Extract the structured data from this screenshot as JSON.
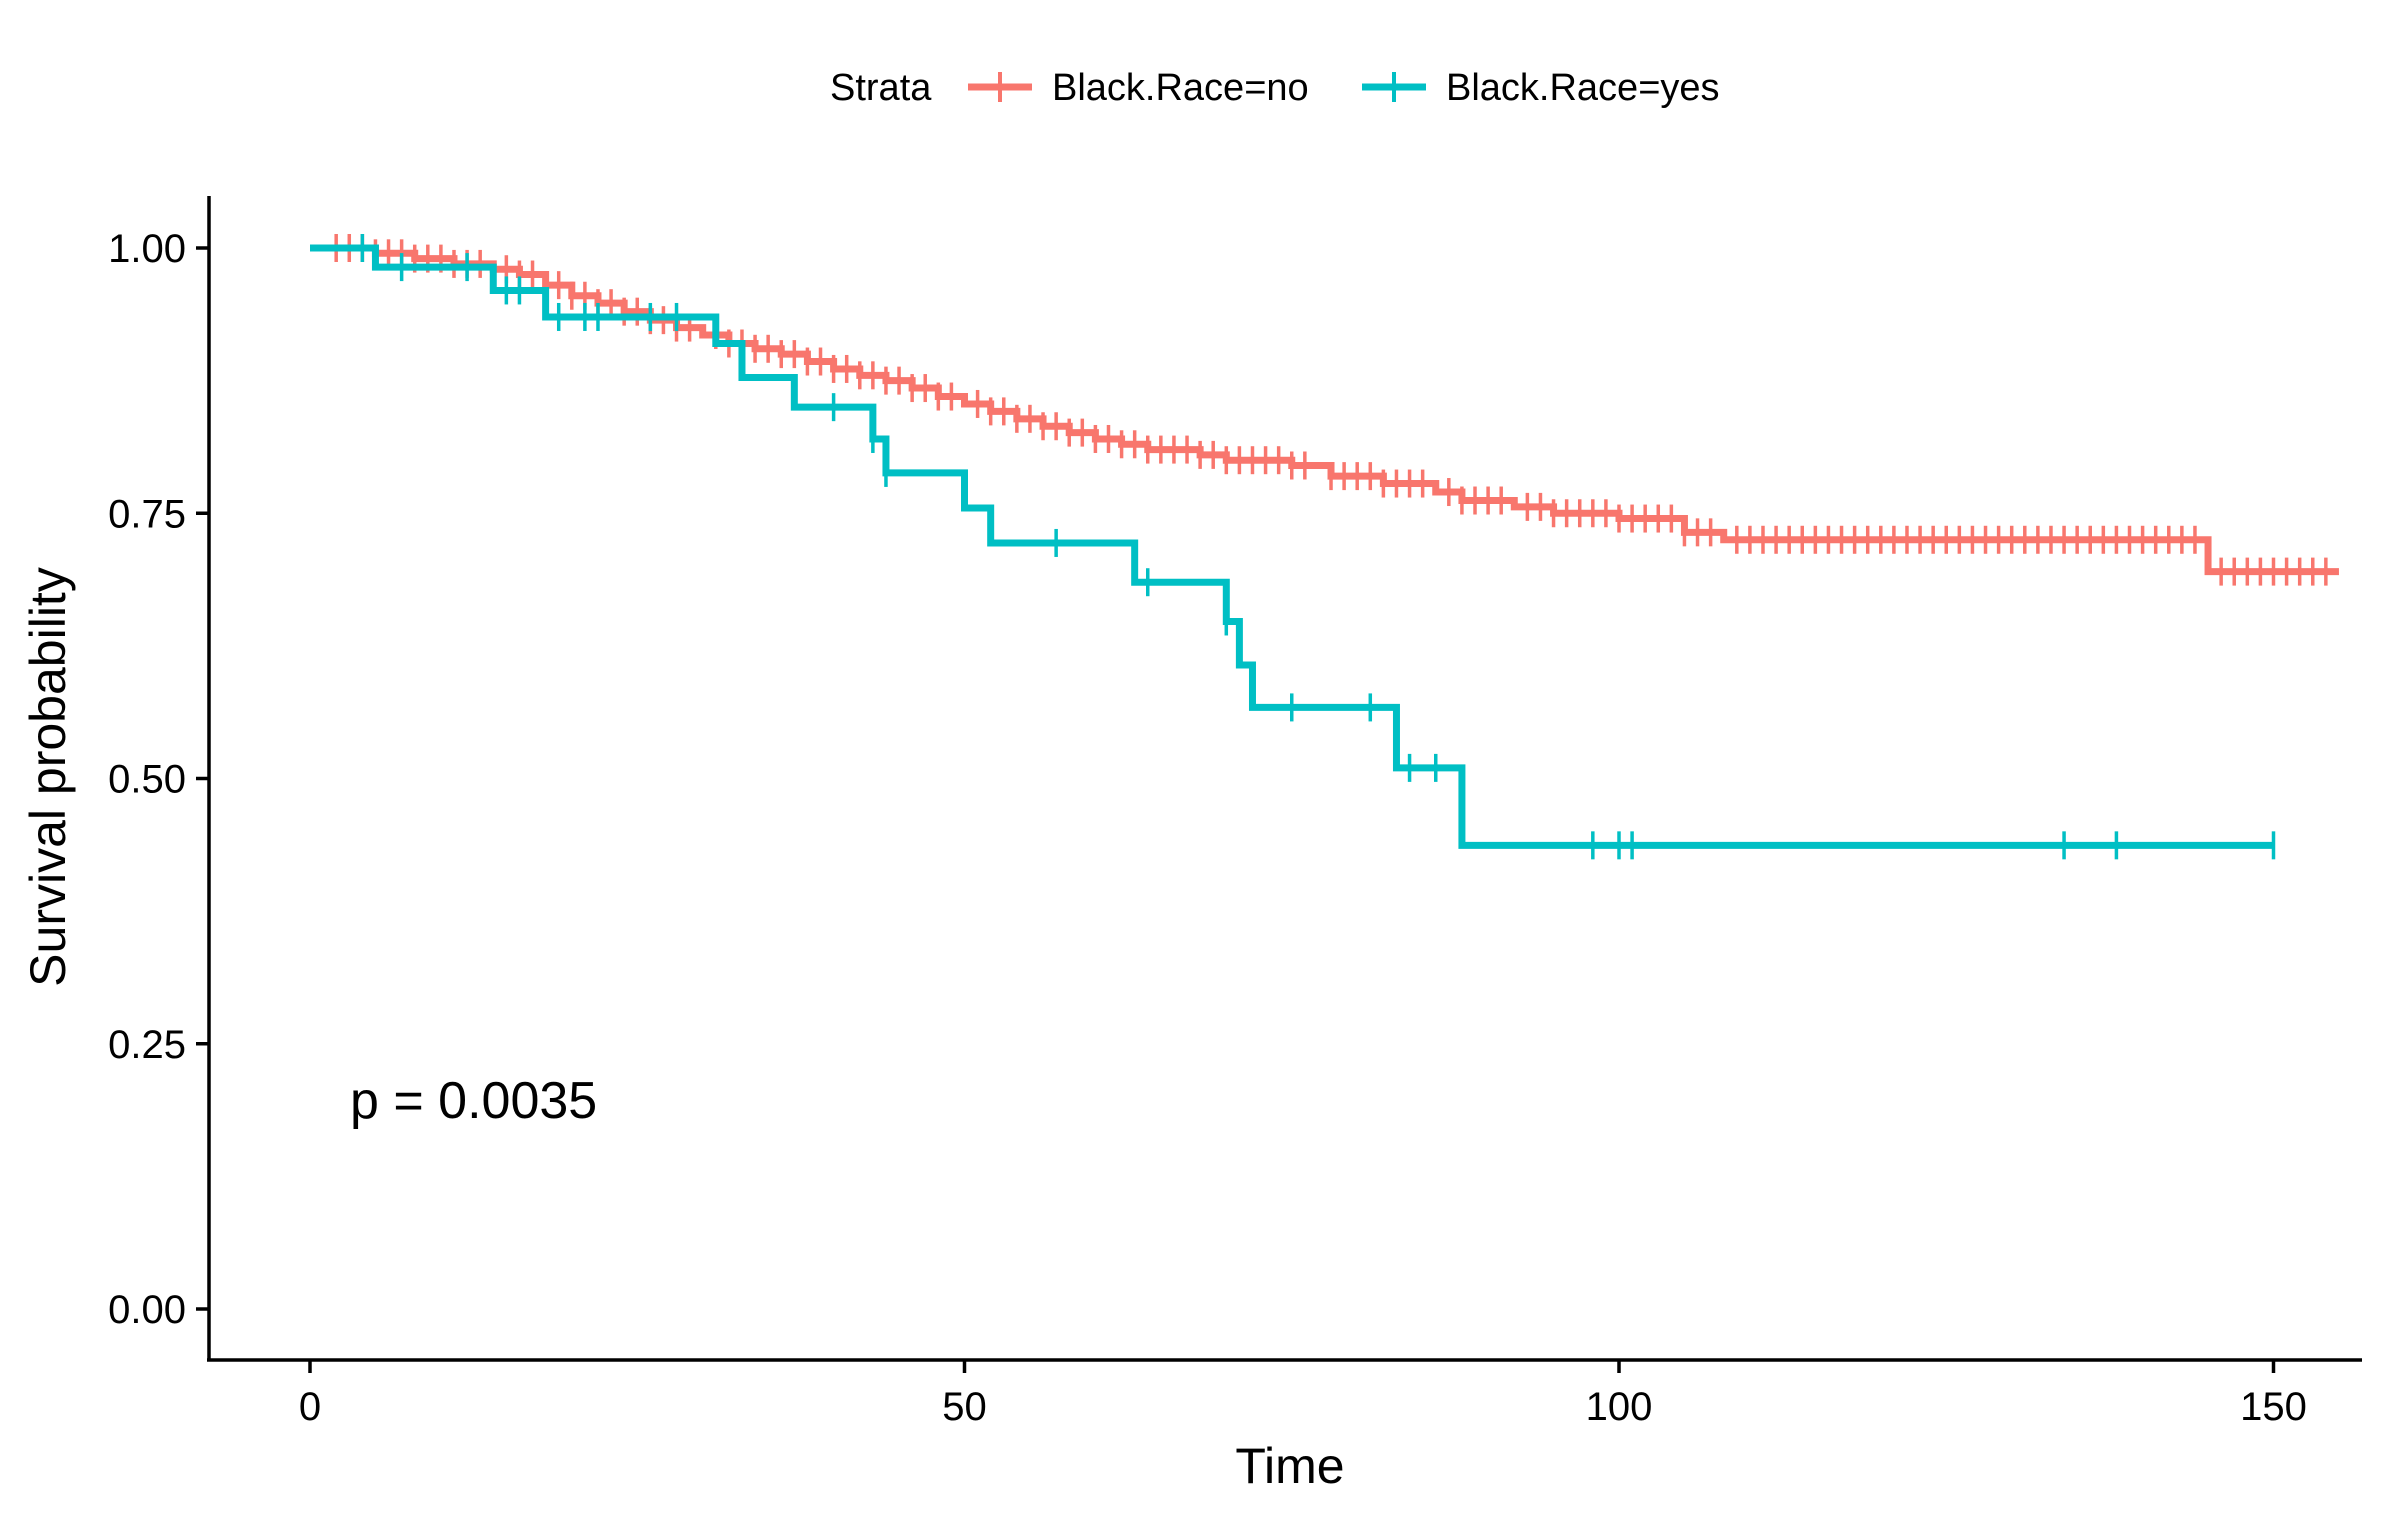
{
  "chart_data": {
    "type": "line",
    "title": "",
    "xlabel": "Time",
    "ylabel": "Survival probability",
    "xlim": [
      0,
      155
    ],
    "ylim": [
      0,
      1
    ],
    "x_ticks": [
      "0",
      "50",
      "100",
      "150"
    ],
    "y_ticks": [
      "0.00",
      "0.25",
      "0.50",
      "0.75",
      "1.00"
    ],
    "grid": false,
    "legend": {
      "title": "Strata",
      "position": "top",
      "entries": [
        "Black.Race=no",
        "Black.Race=yes"
      ]
    },
    "annotation": "p = 0.0035",
    "series": [
      {
        "name": "Black.Race=no",
        "color": "#F8766D",
        "steps": [
          [
            0,
            1.0
          ],
          [
            5,
            0.995
          ],
          [
            8,
            0.99
          ],
          [
            11,
            0.985
          ],
          [
            14,
            0.98
          ],
          [
            16,
            0.975
          ],
          [
            18,
            0.965
          ],
          [
            20,
            0.955
          ],
          [
            22,
            0.948
          ],
          [
            24,
            0.94
          ],
          [
            26,
            0.932
          ],
          [
            28,
            0.925
          ],
          [
            30,
            0.918
          ],
          [
            32,
            0.91
          ],
          [
            34,
            0.905
          ],
          [
            36,
            0.9
          ],
          [
            38,
            0.893
          ],
          [
            40,
            0.886
          ],
          [
            42,
            0.88
          ],
          [
            44,
            0.875
          ],
          [
            46,
            0.868
          ],
          [
            48,
            0.86
          ],
          [
            50,
            0.853
          ],
          [
            52,
            0.846
          ],
          [
            54,
            0.839
          ],
          [
            56,
            0.832
          ],
          [
            58,
            0.826
          ],
          [
            60,
            0.82
          ],
          [
            62,
            0.815
          ],
          [
            64,
            0.81
          ],
          [
            68,
            0.805
          ],
          [
            70,
            0.8
          ],
          [
            75,
            0.795
          ],
          [
            78,
            0.785
          ],
          [
            82,
            0.778
          ],
          [
            86,
            0.77
          ],
          [
            88,
            0.762
          ],
          [
            92,
            0.756
          ],
          [
            95,
            0.75
          ],
          [
            100,
            0.745
          ],
          [
            105,
            0.732
          ],
          [
            108,
            0.725
          ],
          [
            145,
            0.695
          ],
          [
            155,
            0.695
          ]
        ],
        "censor_times": [
          2,
          3,
          4,
          5,
          6,
          7,
          8,
          9,
          10,
          11,
          12,
          13,
          15,
          16,
          17,
          19,
          20,
          21,
          22,
          23,
          24,
          25,
          26,
          27,
          28,
          29,
          31,
          32,
          33,
          34,
          35,
          36,
          37,
          38,
          39,
          40,
          41,
          42,
          43,
          44,
          45,
          46,
          47,
          48,
          49,
          51,
          52,
          53,
          54,
          55,
          56,
          57,
          58,
          59,
          60,
          61,
          62,
          63,
          64,
          65,
          66,
          67,
          68,
          69,
          70,
          71,
          72,
          73,
          74,
          75,
          76,
          78,
          79,
          80,
          81,
          82,
          83,
          84,
          85,
          87,
          88,
          89,
          90,
          91,
          93,
          94,
          95,
          96,
          97,
          98,
          99,
          100,
          101,
          102,
          103,
          104,
          105,
          106,
          107,
          109,
          110,
          111,
          112,
          113,
          114,
          115,
          116,
          117,
          118,
          119,
          120,
          121,
          122,
          123,
          124,
          125,
          126,
          127,
          128,
          129,
          130,
          131,
          132,
          133,
          134,
          135,
          136,
          137,
          138,
          139,
          140,
          141,
          142,
          143,
          144,
          146,
          147,
          148,
          149,
          150,
          151,
          152,
          153,
          154
        ]
      },
      {
        "name": "Black.Race=yes",
        "color": "#00BFC4",
        "steps": [
          [
            0,
            1.0
          ],
          [
            5,
            0.982
          ],
          [
            14,
            0.96
          ],
          [
            18,
            0.935
          ],
          [
            31,
            0.91
          ],
          [
            33,
            0.878
          ],
          [
            37,
            0.85
          ],
          [
            43,
            0.82
          ],
          [
            44,
            0.788
          ],
          [
            50,
            0.755
          ],
          [
            52,
            0.722
          ],
          [
            63,
            0.685
          ],
          [
            70,
            0.648
          ],
          [
            71,
            0.607
          ],
          [
            72,
            0.567
          ],
          [
            83,
            0.51
          ],
          [
            88,
            0.437
          ],
          [
            150,
            0.437
          ]
        ],
        "censor_times": [
          4,
          7,
          12,
          15,
          16,
          19,
          21,
          22,
          26,
          28,
          40,
          43,
          44,
          57,
          64,
          70,
          75,
          81,
          84,
          86,
          98,
          100,
          101,
          134,
          138,
          150
        ]
      }
    ]
  }
}
